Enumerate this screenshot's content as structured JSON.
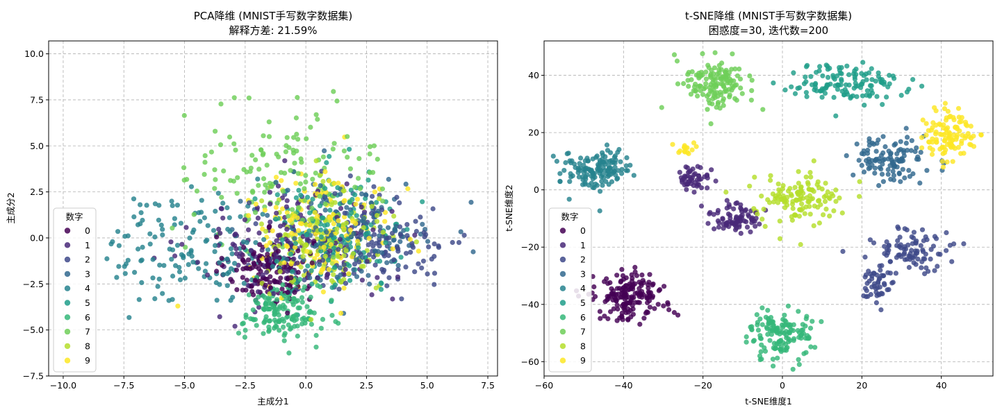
{
  "palette": [
    "#440154",
    "#482878",
    "#3e4989",
    "#31688e",
    "#26828e",
    "#1f9e89",
    "#35b779",
    "#6ece58",
    "#b5de2b",
    "#fde725"
  ],
  "chart_data": [
    {
      "type": "scatter",
      "title": "PCA降维 (MNIST手写数字数据集)",
      "subtitle": "解释方差: 21.59%",
      "xlabel": "主成分1",
      "ylabel": "主成分2",
      "xlim": [
        -10.6,
        7.9
      ],
      "ylim": [
        -7.5,
        10.7
      ],
      "xticks": [
        -10.0,
        -7.5,
        -5.0,
        -2.5,
        0.0,
        2.5,
        5.0,
        7.5
      ],
      "xtick_labels": [
        "−10.0",
        "−7.5",
        "−5.0",
        "−2.5",
        "0.0",
        "2.5",
        "5.0",
        "7.5"
      ],
      "yticks": [
        -7.5,
        -5.0,
        -2.5,
        0.0,
        2.5,
        5.0,
        7.5,
        10.0
      ],
      "ytick_labels": [
        "−7.5",
        "−5.0",
        "−2.5",
        "0.0",
        "2.5",
        "5.0",
        "7.5",
        "10.0"
      ],
      "grid": true,
      "legend": {
        "title": "数字",
        "position": "bottom-left",
        "entries": [
          "0",
          "1",
          "2",
          "3",
          "4",
          "5",
          "6",
          "7",
          "8",
          "9"
        ]
      },
      "clusters": [
        {
          "digit": 0,
          "n": 150,
          "cx": -1.5,
          "cy": -1.7,
          "sx": 0.9,
          "sy": 0.9
        },
        {
          "digit": 1,
          "n": 150,
          "cx": -0.6,
          "cy": -0.4,
          "sx": 2.0,
          "sy": 1.7
        },
        {
          "digit": 2,
          "n": 150,
          "cx": 2.8,
          "cy": -0.3,
          "sx": 2.0,
          "sy": 1.4
        },
        {
          "digit": 3,
          "n": 150,
          "cx": 1.9,
          "cy": 0.5,
          "sx": 1.7,
          "sy": 1.4
        },
        {
          "digit": 4,
          "n": 150,
          "cx": -4.5,
          "cy": -0.6,
          "sx": 1.8,
          "sy": 1.5
        },
        {
          "digit": 5,
          "n": 150,
          "cx": 1.2,
          "cy": 0.3,
          "sx": 1.6,
          "sy": 1.6
        },
        {
          "digit": 6,
          "n": 150,
          "cx": -1.0,
          "cy": -4.1,
          "sx": 0.8,
          "sy": 0.8
        },
        {
          "digit": 7,
          "n": 150,
          "cx": -0.8,
          "cy": 3.6,
          "sx": 1.9,
          "sy": 1.8
        },
        {
          "digit": 8,
          "n": 150,
          "cx": 0.9,
          "cy": -0.2,
          "sx": 1.4,
          "sy": 1.4
        },
        {
          "digit": 9,
          "n": 150,
          "cx": 0.6,
          "cy": 0.5,
          "sx": 1.5,
          "sy": 1.5
        }
      ]
    },
    {
      "type": "scatter",
      "title": "t-SNE降维 (MNIST手写数字数据集)",
      "subtitle": "困惑度=30, 迭代数=200",
      "xlabel": "t-SNE维度1",
      "ylabel": "t-SNE维度2",
      "xlim": [
        -60,
        53
      ],
      "ylim": [
        -65,
        52
      ],
      "xticks": [
        -60,
        -40,
        -20,
        0,
        20,
        40
      ],
      "xtick_labels": [
        "−60",
        "−40",
        "−20",
        "0",
        "20",
        "40"
      ],
      "yticks": [
        -60,
        -40,
        -20,
        0,
        20,
        40
      ],
      "ytick_labels": [
        "−60",
        "−40",
        "−20",
        "0",
        "20",
        "40"
      ],
      "grid": true,
      "legend": {
        "title": "数字",
        "position": "bottom-left",
        "entries": [
          "0",
          "1",
          "2",
          "3",
          "4",
          "5",
          "6",
          "7",
          "8",
          "9"
        ]
      },
      "clusters": [
        {
          "digit": 0,
          "n": 170,
          "cx": -38,
          "cy": -37,
          "sx": 4.5,
          "sy": 3.6
        },
        {
          "digit": 1,
          "n": 80,
          "cx": -11,
          "cy": -10,
          "sx": 3.2,
          "sy": 2.3
        },
        {
          "digit": 1,
          "n": 50,
          "cx": -22,
          "cy": 4,
          "sx": 2.2,
          "sy": 2.2
        },
        {
          "digit": 2,
          "n": 90,
          "cx": 32,
          "cy": -21,
          "sx": 5.0,
          "sy": 4.0
        },
        {
          "digit": 2,
          "n": 50,
          "cx": 24,
          "cy": -33,
          "sx": 2.5,
          "sy": 3.5
        },
        {
          "digit": 3,
          "n": 110,
          "cx": 27,
          "cy": 10,
          "sx": 4.8,
          "sy": 4.0
        },
        {
          "digit": 4,
          "n": 140,
          "cx": -47,
          "cy": 7,
          "sx": 4.3,
          "sy": 3.7
        },
        {
          "digit": 5,
          "n": 130,
          "cx": 16,
          "cy": 37,
          "sx": 7.5,
          "sy": 3.6
        },
        {
          "digit": 6,
          "n": 140,
          "cx": 0,
          "cy": -50,
          "sx": 4.0,
          "sy": 4.2
        },
        {
          "digit": 7,
          "n": 140,
          "cx": -17,
          "cy": 37,
          "sx": 4.0,
          "sy": 5.0
        },
        {
          "digit": 8,
          "n": 130,
          "cx": 4,
          "cy": -3,
          "sx": 5.3,
          "sy": 4.5
        },
        {
          "digit": 9,
          "n": 110,
          "cx": 42,
          "cy": 19,
          "sx": 3.3,
          "sy": 4.0
        },
        {
          "digit": 9,
          "n": 15,
          "cx": -24,
          "cy": 14,
          "sx": 1.3,
          "sy": 1.3
        }
      ]
    }
  ]
}
